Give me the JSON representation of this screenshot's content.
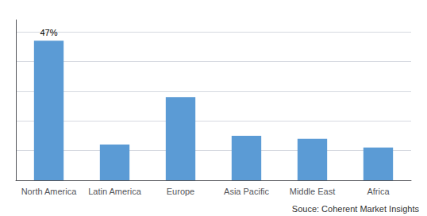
{
  "chart_data": {
    "type": "bar",
    "categories": [
      "North America",
      "Latin America",
      "Europe",
      "Asia Pacific",
      "Middle East",
      "Africa"
    ],
    "values": [
      47,
      12,
      28,
      15,
      14,
      11
    ],
    "color": "#5b9bd5",
    "ylim": [
      0,
      54
    ],
    "yticks": [
      0,
      10,
      20,
      30,
      40,
      50
    ],
    "grid": true,
    "tick_labels": "x",
    "annotations": [
      {
        "text": "47%",
        "x": "North America",
        "y": 47
      },
      {
        "text": "Souce: Coherent Market Insights"
      }
    ]
  }
}
